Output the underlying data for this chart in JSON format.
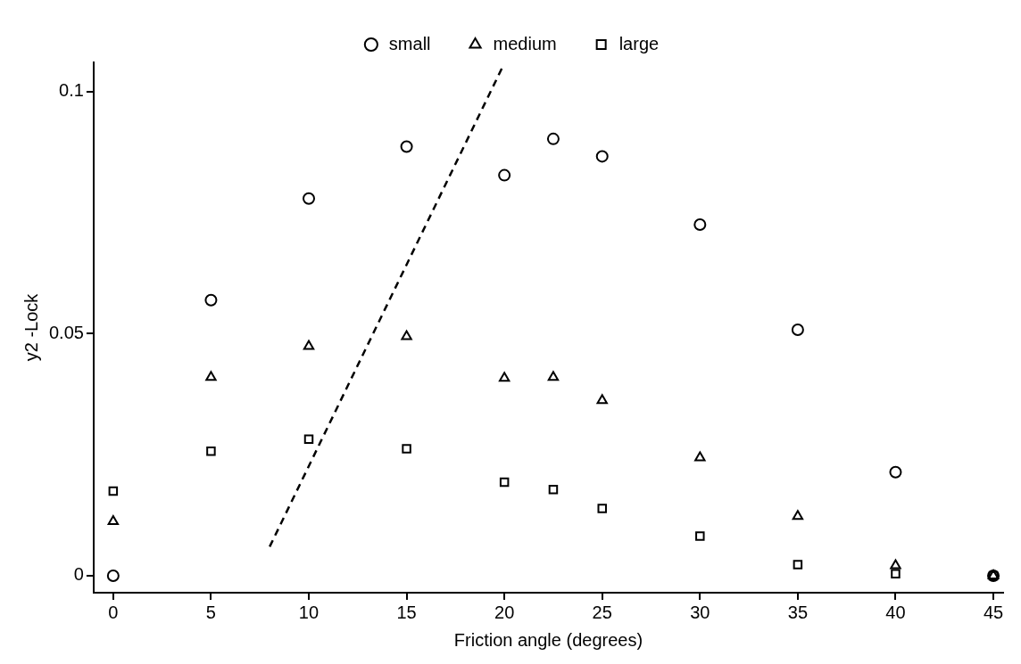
{
  "chart_data": {
    "type": "scatter",
    "xlabel": "Friction angle (degrees)",
    "ylabel": "y2 -Lock",
    "xlim": [
      -1,
      45.5
    ],
    "ylim": [
      -0.0035,
      0.106
    ],
    "xticks": [
      0,
      5,
      10,
      15,
      20,
      25,
      30,
      35,
      40,
      45
    ],
    "yticks": [
      0,
      0.05,
      0.1
    ],
    "grid": false,
    "legend": "top",
    "series": [
      {
        "name": "small",
        "color": "#000000",
        "marker": "circle",
        "x": [
          0,
          5,
          10,
          15,
          20,
          22.5,
          25,
          30,
          35,
          40,
          45
        ],
        "values": [
          0,
          0.0569,
          0.0779,
          0.0886,
          0.0827,
          0.0902,
          0.0866,
          0.0725,
          0.0508,
          0.0214,
          0
        ]
      },
      {
        "name": "medium",
        "color": "#000000",
        "marker": "triangle",
        "x": [
          0,
          5,
          10,
          15,
          20,
          22.5,
          25,
          30,
          35,
          40,
          45
        ],
        "values": [
          0.0112,
          0.041,
          0.0474,
          0.0494,
          0.0408,
          0.041,
          0.0362,
          0.0244,
          0.0123,
          0.0021,
          0
        ]
      },
      {
        "name": "large",
        "color": "#000000",
        "marker": "square",
        "x": [
          0,
          5,
          10,
          15,
          20,
          22.5,
          25,
          30,
          35,
          40,
          45
        ],
        "values": [
          0.0175,
          0.0257,
          0.0282,
          0.0262,
          0.0193,
          0.0178,
          0.0139,
          0.0082,
          0.0023,
          0.0004,
          0
        ]
      },
      {
        "type": "line",
        "color": "#000000",
        "marker": "none",
        "line_style": "dashed",
        "x": [
          8,
          19.9
        ],
        "values": [
          0.006,
          0.105
        ]
      }
    ]
  }
}
